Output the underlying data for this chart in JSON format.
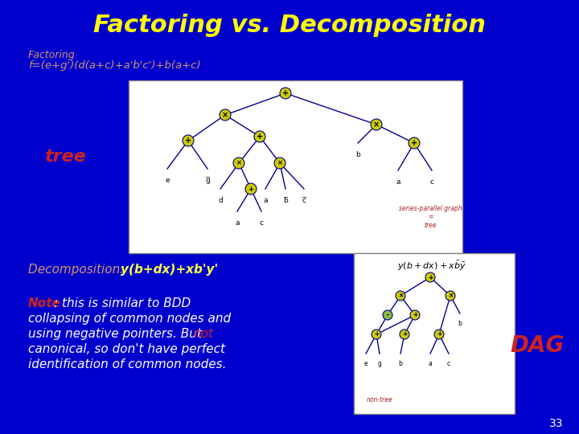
{
  "title": "Factoring vs. Decomposition",
  "title_color": "#FFFF00",
  "title_fontsize": 22,
  "bg_color": "#0000CC",
  "factoring_label": "Factoring",
  "factoring_formula": "f=(e+g')(d(a+c)+a'b'c')+b(a+c)",
  "factoring_color": "#D4956A",
  "tree_label": "tree",
  "tree_label_color": "#CC2222",
  "decomp_label": "Decomposition: ",
  "decomp_formula": "y(b+dx)+xb'y'",
  "decomp_label_color": "#D4956A",
  "decomp_formula_color": "#FFFF44",
  "note_label": "Note",
  "note_color": "#CC2222",
  "note_main_color": "#FFFFFF",
  "dag_label": "DAG",
  "dag_color": "#CC2222",
  "page_num": "33",
  "page_color": "#FFFFFF",
  "node_color": "#CCCC00",
  "node_edge": "#000088",
  "line_color": "#000088",
  "series_parallel_color": "#AA2222",
  "nontre_color": "#AA2222"
}
